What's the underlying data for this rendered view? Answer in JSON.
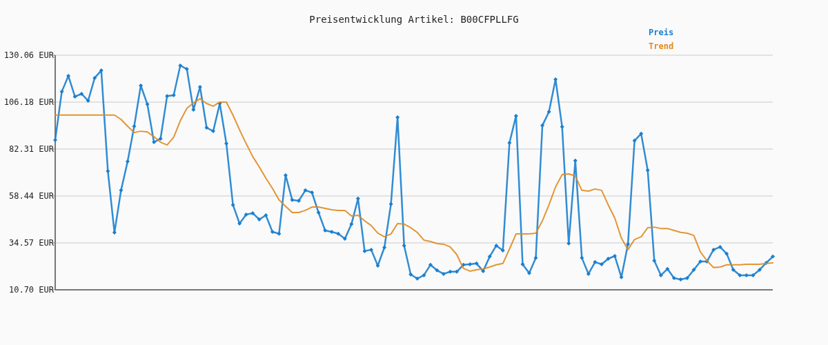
{
  "chart_data": {
    "type": "line",
    "title": "Preisentwicklung Artikel: B00CFPLLFG",
    "categories": [
      null,
      null,
      null,
      null,
      null,
      null,
      null,
      null,
      null,
      null,
      null,
      null,
      null,
      null,
      null,
      null,
      null,
      null,
      null,
      null,
      null,
      null,
      null,
      null,
      null,
      null,
      null,
      null,
      null,
      null,
      null,
      null,
      null,
      null,
      null,
      null,
      null,
      null,
      null,
      null,
      null,
      null,
      null,
      null,
      null,
      null,
      null,
      null,
      null,
      null,
      null,
      null,
      null,
      null,
      null,
      null,
      null,
      null,
      null,
      null,
      null,
      null,
      null,
      null,
      null,
      null,
      null,
      null,
      null,
      null,
      null,
      null,
      null,
      null,
      null,
      null,
      null,
      null,
      null,
      null,
      null,
      null,
      null,
      null,
      null,
      null,
      null,
      null,
      null,
      null,
      null,
      null,
      null,
      null,
      null,
      null,
      null,
      null,
      null,
      null,
      null,
      null,
      null,
      null,
      null,
      null,
      null,
      null,
      null,
      null
    ],
    "series": [
      {
        "name": "Preis",
        "color": "#1a7fcf",
        "marker": "diamond",
        "values": [
          86.9,
          111.5,
          119.5,
          109.0,
          110.4,
          106.9,
          118.5,
          122.3,
          71.1,
          39.8,
          61.3,
          76.0,
          93.9,
          114.6,
          105.1,
          85.8,
          87.6,
          109.3,
          109.7,
          124.8,
          123.0,
          102.3,
          113.9,
          93.2,
          91.4,
          105.5,
          85.1,
          53.9,
          44.4,
          49.0,
          49.7,
          46.5,
          48.6,
          40.2,
          39.2,
          69.0,
          56.4,
          56.0,
          61.3,
          60.2,
          50.0,
          40.9,
          40.2,
          39.2,
          36.7,
          44.1,
          57.1,
          30.4,
          31.1,
          23.0,
          32.2,
          54.3,
          98.5,
          33.2,
          18.5,
          16.4,
          18.1,
          23.4,
          20.6,
          18.8,
          19.9,
          19.9,
          23.4,
          23.7,
          24.1,
          20.2,
          27.6,
          33.2,
          30.7,
          85.5,
          99.2,
          23.7,
          19.2,
          26.9,
          94.3,
          101.3,
          117.8,
          93.6,
          34.3,
          76.4,
          26.9,
          18.8,
          24.8,
          23.7,
          26.5,
          27.9,
          17.1,
          33.9,
          86.6,
          90.1,
          71.5,
          25.5,
          18.1,
          21.3,
          16.7,
          16.0,
          16.7,
          20.9,
          25.1,
          25.1,
          31.1,
          32.5,
          29.0,
          20.9,
          18.1,
          18.1,
          18.1,
          20.9,
          24.4,
          27.6
        ]
      },
      {
        "name": "Trend",
        "color": "#e08a1e",
        "marker": "none",
        "values": [
          99.6,
          99.6,
          99.6,
          99.6,
          99.6,
          99.6,
          99.6,
          99.6,
          99.6,
          99.6,
          97.4,
          93.9,
          90.7,
          91.4,
          91.0,
          88.6,
          85.8,
          84.4,
          88.3,
          96.7,
          103.0,
          105.8,
          107.9,
          105.5,
          104.1,
          106.2,
          106.2,
          99.6,
          92.1,
          85.1,
          78.5,
          73.2,
          67.5,
          62.3,
          56.4,
          53.2,
          50.0,
          50.0,
          51.1,
          52.8,
          52.8,
          52.1,
          51.4,
          51.1,
          51.1,
          48.3,
          48.6,
          45.8,
          43.4,
          39.5,
          37.7,
          39.1,
          44.4,
          44.1,
          42.3,
          39.9,
          36.0,
          35.3,
          34.2,
          33.9,
          32.5,
          28.6,
          21.6,
          20.2,
          20.9,
          21.3,
          22.3,
          23.4,
          24.1,
          31.4,
          39.1,
          39.1,
          39.1,
          39.5,
          45.8,
          53.9,
          63.0,
          69.3,
          69.7,
          68.6,
          61.3,
          60.9,
          62.0,
          61.3,
          53.9,
          47.2,
          37.0,
          31.1,
          36.3,
          37.7,
          42.3,
          42.6,
          41.9,
          41.9,
          40.9,
          39.9,
          39.5,
          38.4,
          30.0,
          25.5,
          22.0,
          22.3,
          23.4,
          23.4,
          23.4,
          23.7,
          23.7,
          23.7,
          24.1,
          24.4
        ]
      }
    ],
    "ylim": [
      10.7,
      130.06
    ],
    "yticks": [
      {
        "value": 10.7,
        "label": "10.70 EUR"
      },
      {
        "value": 34.57,
        "label": "34.57 EUR"
      },
      {
        "value": 58.44,
        "label": "58.44 EUR"
      },
      {
        "value": 82.31,
        "label": "82.31 EUR"
      },
      {
        "value": 106.18,
        "label": "106.18 EUR"
      },
      {
        "value": 130.06,
        "label": "130.06 EUR"
      }
    ],
    "grid": "y",
    "legend": "top right"
  }
}
